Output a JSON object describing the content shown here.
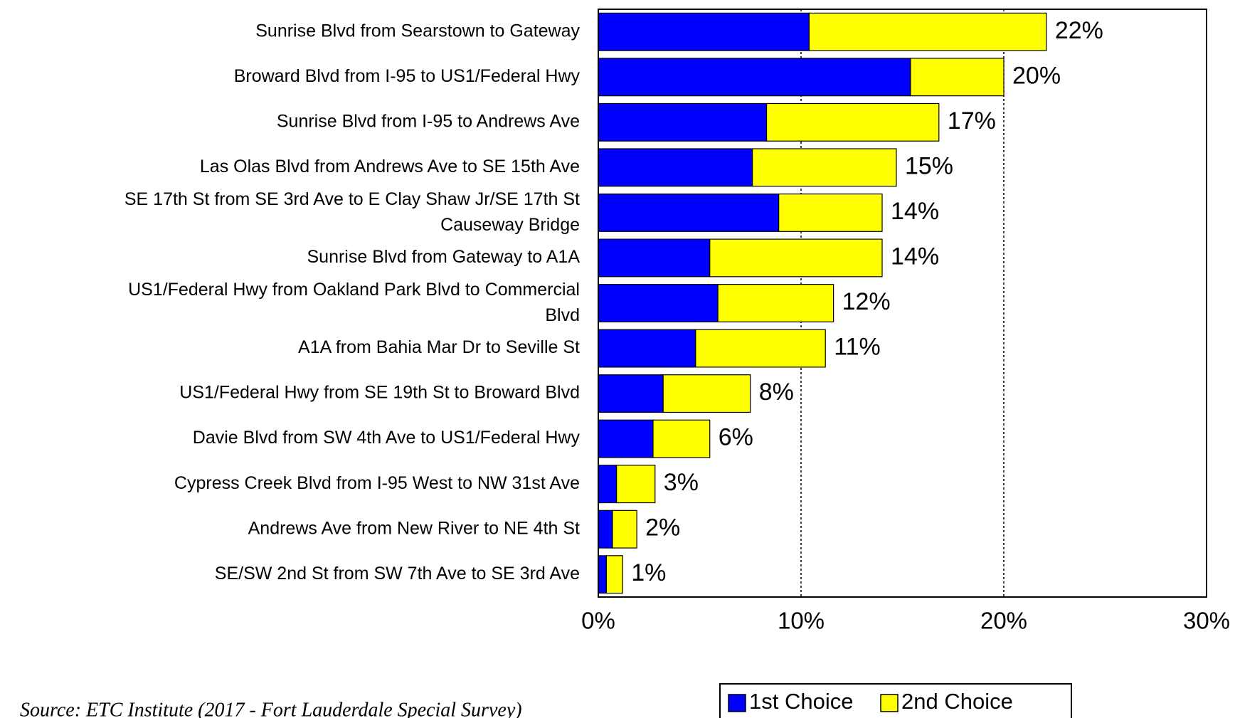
{
  "chart_data": {
    "type": "stacked_barh",
    "categories": [
      "Sunrise Blvd from Searstown to Gateway",
      "Broward Blvd from I-95 to US1/Federal Hwy",
      "Sunrise Blvd from I-95 to Andrews Ave",
      "Las Olas Blvd from Andrews Ave to SE 15th Ave",
      "SE 17th St from SE 3rd Ave to E Clay Shaw Jr/SE 17th St\nCauseway Bridge",
      "Sunrise Blvd from Gateway to A1A",
      "US1/Federal Hwy from Oakland Park Blvd to Commercial\nBlvd",
      "A1A from Bahia Mar Dr to Seville St",
      "US1/Federal Hwy from SE 19th St to Broward Blvd",
      "Davie Blvd from SW 4th Ave to US1/Federal Hwy",
      "Cypress Creek Blvd from I-95 West to NW 31st Ave",
      "Andrews Ave from New River to NE 4th St",
      "SE/SW 2nd St from SW 7th Ave to SE 3rd Ave"
    ],
    "series": [
      {
        "name": "1st Choice",
        "color": "#0000ff",
        "values": [
          10.4,
          15.4,
          8.3,
          7.6,
          8.9,
          5.5,
          5.9,
          4.8,
          3.2,
          2.7,
          0.9,
          0.7,
          0.4
        ]
      },
      {
        "name": "2nd Choice",
        "color": "#ffff00",
        "values": [
          11.7,
          4.6,
          8.5,
          7.1,
          5.1,
          8.5,
          5.7,
          6.4,
          4.3,
          2.8,
          1.9,
          1.2,
          0.8
        ]
      }
    ],
    "total_labels": [
      "22%",
      "20%",
      "17%",
      "15%",
      "14%",
      "14%",
      "12%",
      "11%",
      "8%",
      "6%",
      "3%",
      "2%",
      "1%"
    ],
    "xlim": [
      0,
      30
    ],
    "xticks": [
      {
        "value": 0,
        "label": "0%"
      },
      {
        "value": 10,
        "label": "10%"
      },
      {
        "value": 20,
        "label": "20%"
      },
      {
        "value": 30,
        "label": "30%"
      }
    ],
    "grid": true,
    "legend": "bottom",
    "source": "Source:  ETC Institute (2017 - Fort Lauderdale Special Survey)"
  }
}
